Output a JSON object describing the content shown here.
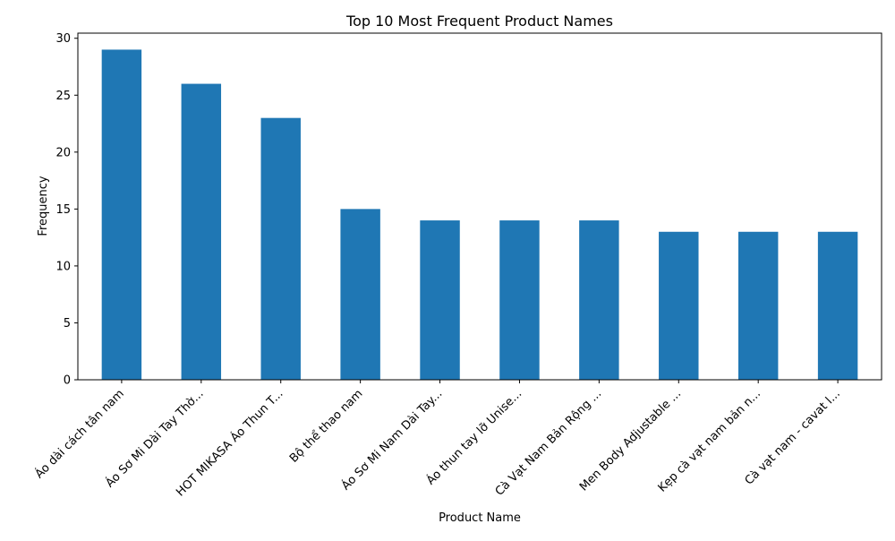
{
  "chart_data": {
    "type": "bar",
    "title": "Top 10 Most Frequent Product Names",
    "xlabel": "Product Name",
    "ylabel": "Frequency",
    "categories": [
      "Áo dài cách tân nam",
      "Áo Sơ Mi Dài Tay Thờ...",
      "HOT MIKASA Áo Thun T...",
      "Bộ thể thao nam",
      "Áo Sơ Mi Nam Dài Tay...",
      "Áo thun tay lỡ Unise...",
      "Cà Vạt Nam Bản Rộng ...",
      "Men Body Adjustable ...",
      "Kẹp cà vạt nam bản n...",
      "Cà vạt nam - cavat l..."
    ],
    "values": [
      29,
      26,
      23,
      15,
      14,
      14,
      14,
      13,
      13,
      13
    ],
    "ylim": [
      0,
      30.45
    ],
    "yticks": [
      0,
      5,
      10,
      15,
      20,
      25,
      30
    ],
    "grid": false,
    "bar_color": "#1f77b4"
  }
}
